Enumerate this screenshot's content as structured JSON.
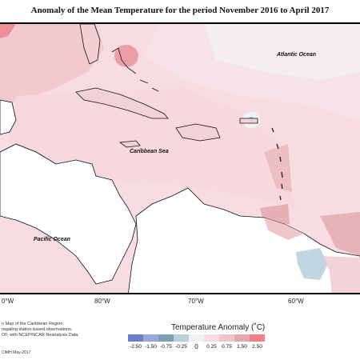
{
  "title": "Anomaly of the Mean Temperature for the period November 2016 to April 2017",
  "map": {
    "labels": {
      "atlantic": "Atlantic Ocean",
      "caribbean": "Caribbean Sea",
      "pacific": "Pacific Ocean"
    },
    "longitudes": [
      "0°W",
      "80°W",
      "70°W",
      "60°W"
    ]
  },
  "footer": {
    "line1": "n Map of the Caribbean Region.",
    "line2": "regating station based observations,",
    "line3": "OF, with NCEP/NCAR Reanalysis Data.",
    "credit": "CIMH May-2017"
  },
  "legend": {
    "title": "Temperature Anomaly (˚C)",
    "ticks": [
      "-2.50",
      "-1.50",
      "-0.75",
      "-0.25",
      "0",
      "0.25",
      "0.75",
      "1.50",
      "2.50"
    ],
    "colors": [
      "#6b7fcf",
      "#98a6dc",
      "#7d9fb6",
      "#b7d2dc",
      "#f2f2f2",
      "#f5dde0",
      "#f0c4c9",
      "#e4a9ae",
      "#f07f88"
    ]
  }
}
